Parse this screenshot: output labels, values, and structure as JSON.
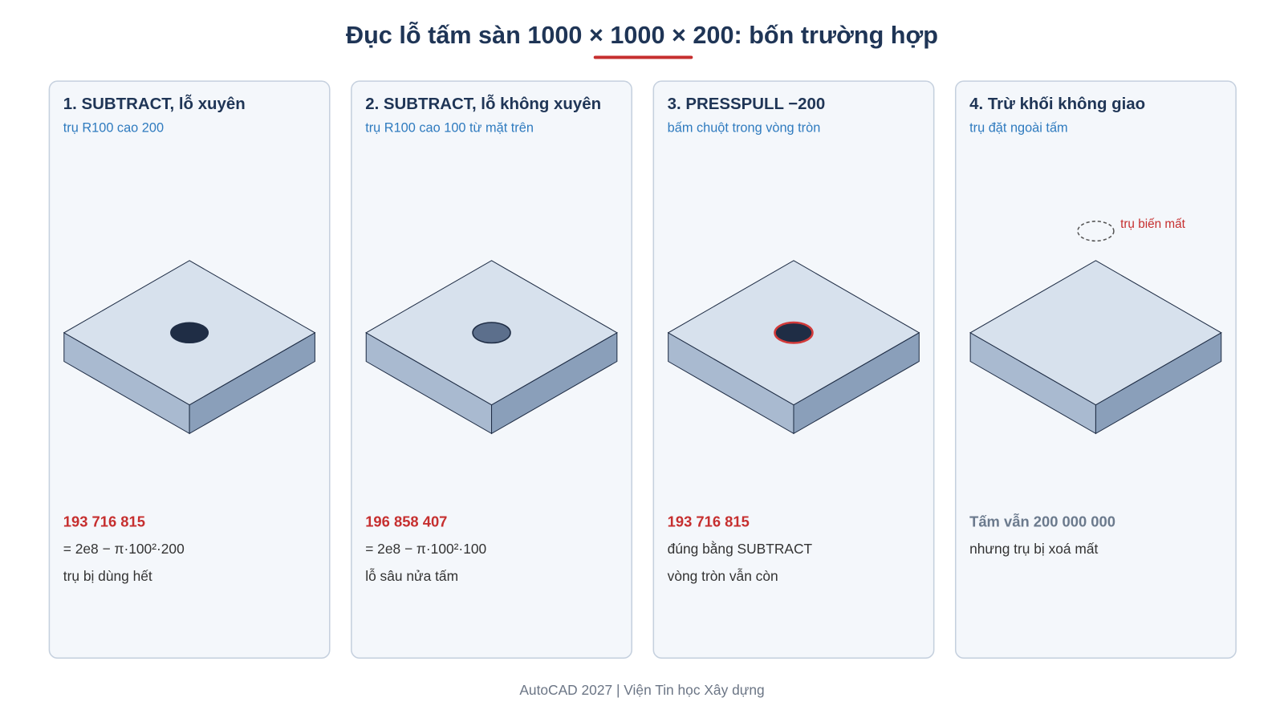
{
  "header": {
    "title": "Đục lỗ tấm sàn 1000 × 1000 × 200: bốn trường hợp"
  },
  "panels": [
    {
      "title": "1. SUBTRACT, lỗ xuyên",
      "subtitle": "trụ R100 cao 200",
      "result": "193 716 815",
      "lines": [
        "= 2e8 − π·100²·200",
        "trụ bị dùng hết"
      ]
    },
    {
      "title": "2. SUBTRACT, lỗ không xuyên",
      "subtitle": "trụ R100 cao 100 từ mặt trên",
      "result": "196 858 407",
      "lines": [
        "= 2e8 − π·100²·100",
        "lỗ sâu nửa tấm"
      ]
    },
    {
      "title": "3. PRESSPULL −200",
      "subtitle": "bấm chuột trong vòng tròn",
      "result": "193 716 815",
      "lines": [
        "đúng bằng SUBTRACT",
        "vòng tròn vẫn còn"
      ]
    },
    {
      "title": "4. Trừ khối không giao",
      "subtitle": "trụ đặt ngoài tấm",
      "annotation": "trụ biến mất",
      "result": "Tấm vẫn 200 000 000",
      "lines": [
        "nhưng trụ bị xoá mất"
      ]
    }
  ],
  "footer": "AutoCAD 2027 | Viện Tin học Xây dựng"
}
